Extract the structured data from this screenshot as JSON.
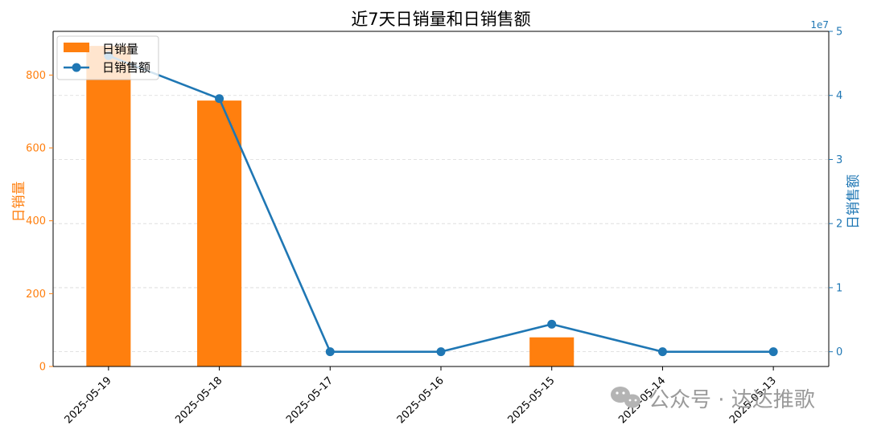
{
  "chart_data": {
    "type": "bar",
    "title": "近7天日销量和日销售额",
    "categories": [
      "2025-05-19",
      "2025-05-18",
      "2025-05-17",
      "2025-05-16",
      "2025-05-15",
      "2025-05-14",
      "2025-05-13"
    ],
    "series": [
      {
        "name": "日销量",
        "type": "bar",
        "axis": "left",
        "color": "#ff7f0e",
        "values": [
          880,
          730,
          0,
          0,
          80,
          0,
          0
        ]
      },
      {
        "name": "日销售额",
        "type": "line",
        "axis": "right",
        "color": "#1f77b4",
        "marker": "circle",
        "values": [
          46200000,
          39500000,
          0,
          0,
          4300000,
          0,
          0
        ]
      }
    ],
    "ylabel_left": "日销量",
    "ylabel_right": "日销售额",
    "ylim_left": [
      0,
      920
    ],
    "yticks_left": [
      0,
      200,
      400,
      600,
      800
    ],
    "ylim_right": [
      -2300000,
      50000000
    ],
    "yticks_right": [
      0,
      10000000,
      20000000,
      30000000,
      40000000,
      50000000
    ],
    "ytick_labels_right": [
      "0",
      "1",
      "2",
      "3",
      "4",
      "5"
    ],
    "right_axis_multiplier": "1e7",
    "grid": true,
    "legend_position": "top-left"
  },
  "watermark": {
    "icon": "wechat-icon",
    "text": "公众号 · 达达推歌"
  }
}
